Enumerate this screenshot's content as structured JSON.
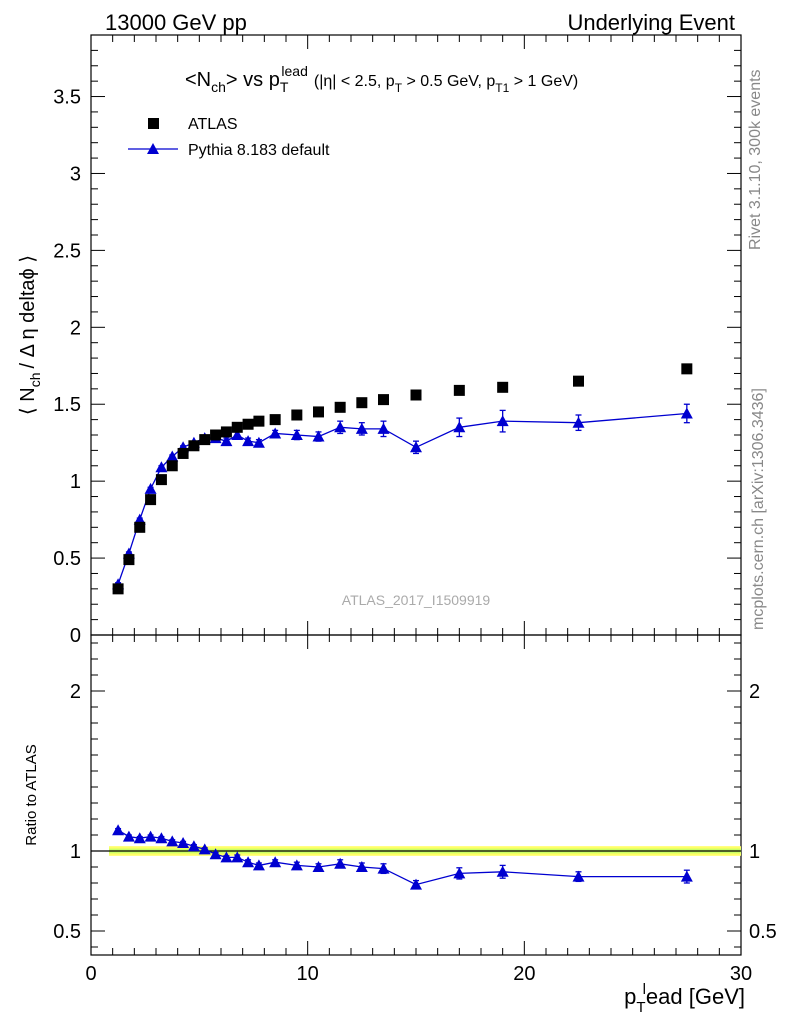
{
  "header": {
    "left": "13000 GeV pp",
    "right": "Underlying Event"
  },
  "plot_title": {
    "main": "<N",
    "main_sub": "ch",
    "main_tail": "> vs p",
    "pt_sup": "lead",
    "pt_sub": "T",
    "cuts_open": "(|η| < 2.5, p",
    "cuts_pt_sub": "T",
    "cuts_mid": " > 0.5 GeV, p",
    "cuts_pt1_sub": "T1",
    "cuts_close": " > 1 GeV)"
  },
  "side_labels": {
    "rivet": "Rivet 3.1.10,  300k events",
    "mcplots": "mcplots.cern.ch [arXiv:1306.3436]"
  },
  "watermark": "ATLAS_2017_I1509919",
  "axes": {
    "ylabel_main": "⟨ N",
    "ylabel_main_sub": "ch",
    "ylabel_main_tail": "/ Δ η deltaϕ ⟩",
    "ylabel_ratio": "Ratio to ATLAS",
    "xlabel_p": "p",
    "xlabel_sub": "T",
    "xlabel_sup": "l",
    "xlabel_tail": "ead [GeV]"
  },
  "colors": {
    "data": "#000000",
    "mc": "#0000d0",
    "band_inner": "#ccff66",
    "band_outer": "#ffff66"
  },
  "chart_data": [
    {
      "type": "scatter",
      "panel": "main",
      "xlim": [
        0,
        30
      ],
      "ylim": [
        0,
        3.9
      ],
      "x_ticks": [
        0,
        10,
        20,
        30
      ],
      "y_ticks": [
        0,
        0.5,
        1,
        1.5,
        2,
        2.5,
        3,
        3.5
      ],
      "y_tick_labels": [
        "0",
        "0.5",
        "1",
        "1.5",
        "2",
        "2.5",
        "3",
        "3.5"
      ],
      "legend_position": "top-left",
      "series": [
        {
          "name": "ATLAS",
          "marker": "square",
          "points": [
            [
              1.25,
              0.3
            ],
            [
              1.75,
              0.49
            ],
            [
              2.25,
              0.7
            ],
            [
              2.75,
              0.88
            ],
            [
              3.25,
              1.01
            ],
            [
              3.75,
              1.1
            ],
            [
              4.25,
              1.18
            ],
            [
              4.75,
              1.23
            ],
            [
              5.25,
              1.27
            ],
            [
              5.75,
              1.3
            ],
            [
              6.25,
              1.32
            ],
            [
              6.75,
              1.35
            ],
            [
              7.25,
              1.37
            ],
            [
              7.75,
              1.39
            ],
            [
              8.5,
              1.4
            ],
            [
              9.5,
              1.43
            ],
            [
              10.5,
              1.45
            ],
            [
              11.5,
              1.48
            ],
            [
              12.5,
              1.51
            ],
            [
              13.5,
              1.53
            ],
            [
              15.0,
              1.56
            ],
            [
              17.0,
              1.59
            ],
            [
              19.0,
              1.61
            ],
            [
              22.5,
              1.65
            ],
            [
              27.5,
              1.73
            ]
          ]
        },
        {
          "name": "Pythia 8.183 default",
          "marker": "triangle",
          "points": [
            [
              1.25,
              0.33,
              0.01
            ],
            [
              1.75,
              0.53,
              0.01
            ],
            [
              2.25,
              0.75,
              0.01
            ],
            [
              2.75,
              0.95,
              0.01
            ],
            [
              3.25,
              1.09,
              0.01
            ],
            [
              3.75,
              1.16,
              0.01
            ],
            [
              4.25,
              1.22,
              0.01
            ],
            [
              4.75,
              1.25,
              0.01
            ],
            [
              5.25,
              1.28,
              0.01
            ],
            [
              5.75,
              1.28,
              0.02
            ],
            [
              6.25,
              1.26,
              0.02
            ],
            [
              6.75,
              1.3,
              0.02
            ],
            [
              7.25,
              1.26,
              0.02
            ],
            [
              7.75,
              1.25,
              0.02
            ],
            [
              8.5,
              1.31,
              0.02
            ],
            [
              9.5,
              1.3,
              0.03
            ],
            [
              10.5,
              1.29,
              0.03
            ],
            [
              11.5,
              1.35,
              0.04
            ],
            [
              12.5,
              1.34,
              0.04
            ],
            [
              13.5,
              1.34,
              0.05
            ],
            [
              15.0,
              1.22,
              0.04
            ],
            [
              17.0,
              1.35,
              0.06
            ],
            [
              19.0,
              1.39,
              0.07
            ],
            [
              22.5,
              1.38,
              0.05
            ],
            [
              27.5,
              1.44,
              0.06
            ]
          ]
        }
      ]
    },
    {
      "type": "scatter",
      "panel": "ratio",
      "xlim": [
        0,
        30
      ],
      "ylim": [
        0.35,
        2.35
      ],
      "x_ticks": [
        0,
        10,
        20,
        30
      ],
      "x_tick_labels": [
        "0",
        "10",
        "20",
        "30"
      ],
      "y_ticks": [
        0.5,
        1,
        2
      ],
      "y_tick_labels": [
        "0.5",
        "1",
        "2"
      ],
      "reference_line": 1,
      "series": [
        {
          "name": "Pythia 8.183 default",
          "marker": "triangle",
          "points": [
            [
              1.25,
              1.13,
              0.01
            ],
            [
              1.75,
              1.09,
              0.01
            ],
            [
              2.25,
              1.08,
              0.01
            ],
            [
              2.75,
              1.09,
              0.01
            ],
            [
              3.25,
              1.08,
              0.01
            ],
            [
              3.75,
              1.06,
              0.01
            ],
            [
              4.25,
              1.05,
              0.01
            ],
            [
              4.75,
              1.03,
              0.01
            ],
            [
              5.25,
              1.01,
              0.01
            ],
            [
              5.75,
              0.98,
              0.01
            ],
            [
              6.25,
              0.96,
              0.01
            ],
            [
              6.75,
              0.96,
              0.015
            ],
            [
              7.25,
              0.93,
              0.015
            ],
            [
              7.75,
              0.91,
              0.015
            ],
            [
              8.5,
              0.93,
              0.015
            ],
            [
              9.5,
              0.91,
              0.02
            ],
            [
              10.5,
              0.9,
              0.02
            ],
            [
              11.5,
              0.92,
              0.025
            ],
            [
              12.5,
              0.9,
              0.025
            ],
            [
              13.5,
              0.89,
              0.03
            ],
            [
              15.0,
              0.79,
              0.025
            ],
            [
              17.0,
              0.86,
              0.035
            ],
            [
              19.0,
              0.87,
              0.04
            ],
            [
              22.5,
              0.84,
              0.03
            ],
            [
              27.5,
              0.84,
              0.04
            ]
          ]
        }
      ]
    }
  ]
}
